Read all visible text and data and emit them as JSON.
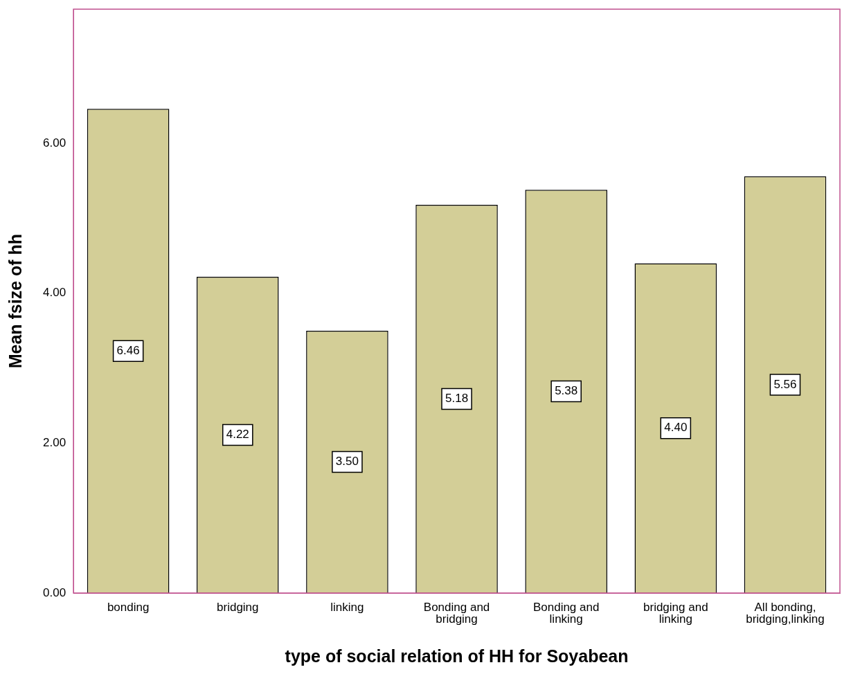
{
  "chart_data": {
    "type": "bar",
    "xlabel": "type of social relation of HH for Soyabean",
    "ylabel": "Mean fsize of hh",
    "categories": [
      "bonding",
      "bridging",
      "linking",
      "Bonding and\nbridging",
      "Bonding and\nlinking",
      "bridging and\nlinking",
      "All bonding,\nbridging,linking"
    ],
    "values": [
      6.46,
      4.22,
      3.5,
      5.18,
      5.38,
      4.4,
      5.56
    ],
    "value_labels": [
      "6.46",
      "4.22",
      "3.50",
      "5.18",
      "5.38",
      "4.40",
      "5.56"
    ],
    "color": "#d3ce97",
    "ylim": [
      0,
      7.79
    ],
    "yticks": [
      {
        "value": 0,
        "label": "0.00"
      },
      {
        "value": 2,
        "label": "2.00"
      },
      {
        "value": 4,
        "label": "4.00"
      },
      {
        "value": 6,
        "label": "6.00"
      }
    ],
    "grid": false,
    "legend": false
  }
}
